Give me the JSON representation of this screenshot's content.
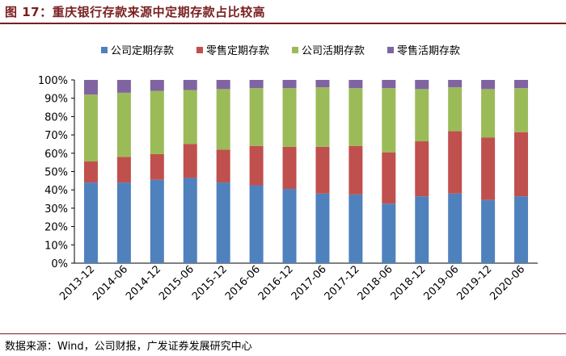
{
  "header": {
    "title": "图 17：重庆银行存款来源中定期存款占比较高"
  },
  "footer": {
    "source": "数据来源：Wind，公司财报，广发证券发展研究中心"
  },
  "colors": {
    "corp_time": "#4f81bd",
    "retail_time": "#c0504d",
    "corp_demand": "#9bbb59",
    "retail_demand": "#8064a2"
  },
  "chart_data": {
    "type": "bar",
    "stacked": true,
    "title": "",
    "xlabel": "",
    "ylabel": "",
    "ylim": [
      0,
      100
    ],
    "yticks": [
      "0%",
      "10%",
      "20%",
      "30%",
      "40%",
      "50%",
      "60%",
      "70%",
      "80%",
      "90%",
      "100%"
    ],
    "legend_position": "top",
    "categories": [
      "2013-12",
      "2014-06",
      "2014-12",
      "2015-06",
      "2015-12",
      "2016-06",
      "2016-12",
      "2017-06",
      "2017-12",
      "2018-06",
      "2018-12",
      "2019-06",
      "2019-12",
      "2020-06"
    ],
    "series": [
      {
        "name": "公司定期存款",
        "color_key": "corp_time",
        "values": [
          44,
          44,
          45.5,
          46.5,
          44,
          42.5,
          40.5,
          38,
          37.5,
          32.5,
          36.5,
          38,
          34.5,
          36.5
        ]
      },
      {
        "name": "零售定期存款",
        "color_key": "retail_time",
        "values": [
          11.5,
          14,
          14,
          18.5,
          18,
          21.5,
          23,
          25.5,
          26.5,
          28,
          30,
          34,
          34,
          35
        ]
      },
      {
        "name": "公司活期存款",
        "color_key": "corp_demand",
        "values": [
          36.5,
          35,
          34.5,
          29.5,
          33,
          31.5,
          32,
          32.5,
          31.5,
          35,
          28.5,
          24,
          26.5,
          24
        ]
      },
      {
        "name": "零售活期存款",
        "color_key": "retail_demand",
        "values": [
          8,
          7,
          6,
          5.5,
          5,
          4.5,
          4.5,
          4,
          4.5,
          4.5,
          5,
          4,
          5,
          4.5
        ]
      }
    ]
  }
}
